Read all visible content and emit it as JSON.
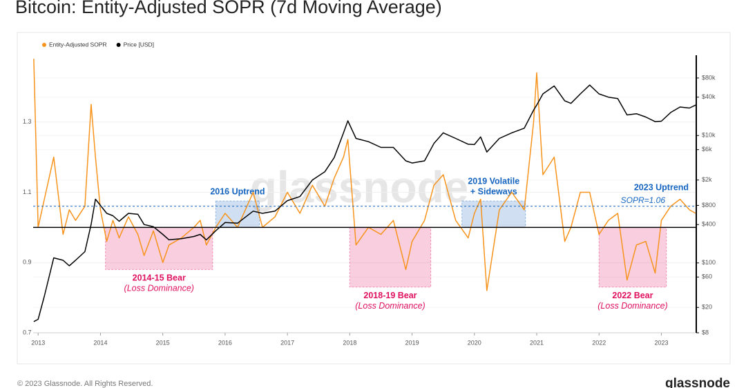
{
  "chart_data": {
    "type": "line",
    "title": "Bitcoin: Entity-Adjusted SOPR (7d Moving Average)",
    "watermark": "glassnode",
    "footer": "© 2023 Glassnode. All Rights Reserved.",
    "logo": "glassnode",
    "x": [
      2012.93,
      2013.0,
      2013.1,
      2013.25,
      2013.4,
      2013.5,
      2013.6,
      2013.75,
      2013.85,
      2013.92,
      2014.0,
      2014.1,
      2014.2,
      2014.3,
      2014.45,
      2014.6,
      2014.7,
      2014.85,
      2015.0,
      2015.1,
      2015.3,
      2015.5,
      2015.6,
      2015.7,
      2015.85,
      2016.0,
      2016.2,
      2016.45,
      2016.6,
      2016.8,
      2017.0,
      2017.2,
      2017.4,
      2017.6,
      2017.75,
      2017.9,
      2017.97,
      2018.1,
      2018.3,
      2018.5,
      2018.7,
      2018.9,
      2019.0,
      2019.2,
      2019.35,
      2019.5,
      2019.7,
      2019.9,
      2020.0,
      2020.1,
      2020.2,
      2020.4,
      2020.6,
      2020.8,
      2020.95,
      2021.0,
      2021.1,
      2021.28,
      2021.45,
      2021.55,
      2021.7,
      2021.85,
      2022.0,
      2022.15,
      2022.3,
      2022.45,
      2022.6,
      2022.75,
      2022.9,
      2023.0,
      2023.15,
      2023.3,
      2023.45,
      2023.55
    ],
    "series": [
      {
        "name": "Entity-Adjusted SOPR",
        "color": "#f7931a",
        "axis": "y",
        "values": [
          1.48,
          1.0,
          1.08,
          1.2,
          0.98,
          1.05,
          1.02,
          1.06,
          1.35,
          1.2,
          1.05,
          0.96,
          1.02,
          0.97,
          1.03,
          0.98,
          0.92,
          0.99,
          0.9,
          0.95,
          0.97,
          1.0,
          1.02,
          0.95,
          1.0,
          1.04,
          1.0,
          1.1,
          1.0,
          1.03,
          1.1,
          1.04,
          1.12,
          1.06,
          1.14,
          1.2,
          1.25,
          0.95,
          1.0,
          0.98,
          1.02,
          0.88,
          0.96,
          1.02,
          1.12,
          1.15,
          1.02,
          0.97,
          1.04,
          1.08,
          0.82,
          1.05,
          1.1,
          1.05,
          1.3,
          1.44,
          1.15,
          1.2,
          0.96,
          1.0,
          1.1,
          1.1,
          0.98,
          1.02,
          1.04,
          0.85,
          0.95,
          0.96,
          0.87,
          1.02,
          1.06,
          1.08,
          1.05,
          1.04
        ]
      },
      {
        "name": "Price [USD]",
        "color": "#000000",
        "axis": "y2",
        "values": [
          12,
          13,
          30,
          120,
          110,
          90,
          110,
          150,
          400,
          1000,
          800,
          600,
          550,
          450,
          600,
          580,
          400,
          370,
          280,
          230,
          240,
          260,
          280,
          230,
          320,
          430,
          420,
          650,
          600,
          650,
          950,
          1100,
          2000,
          2700,
          4500,
          11000,
          17000,
          9000,
          8000,
          6500,
          6500,
          4000,
          3700,
          4000,
          7500,
          11000,
          9000,
          7300,
          7200,
          9500,
          5500,
          9000,
          11000,
          13000,
          25000,
          30000,
          45000,
          60000,
          35000,
          32000,
          45000,
          62000,
          45000,
          40000,
          38000,
          21000,
          22000,
          19500,
          16500,
          16800,
          23000,
          28000,
          27000,
          30000
        ]
      }
    ],
    "xlim": [
      2012.92,
      2023.56
    ],
    "xticks": [
      2013,
      2014,
      2015,
      2016,
      2017,
      2018,
      2019,
      2020,
      2021,
      2022,
      2023
    ],
    "ylim": [
      0.7,
      1.49
    ],
    "yticks": [
      0.7,
      0.9,
      1.1,
      1.3
    ],
    "y2lim": [
      8,
      182000
    ],
    "y2log": true,
    "y2ticks": [
      {
        "value": 8,
        "label": "$8"
      },
      {
        "value": 20,
        "label": "$20"
      },
      {
        "value": 60,
        "label": "$60"
      },
      {
        "value": 100,
        "label": "$100"
      },
      {
        "value": 400,
        "label": "$400"
      },
      {
        "value": 800,
        "label": "$800"
      },
      {
        "value": 2000,
        "label": "$2k"
      },
      {
        "value": 6000,
        "label": "$6k"
      },
      {
        "value": 10000,
        "label": "$10k"
      },
      {
        "value": 40000,
        "label": "$40k"
      },
      {
        "value": 80000,
        "label": "$80k"
      }
    ],
    "grid": true,
    "hlines": [
      {
        "value": 1,
        "color": "#000000"
      },
      {
        "value": 1.06,
        "color": "#1565c0",
        "label": "SOPR=1.06"
      }
    ],
    "regions": [
      {
        "x": [
          2014.08,
          2015.8
        ],
        "y": [
          0.88,
          1.0
        ],
        "color": "#e0115f",
        "label": "2014-15 Bear",
        "sublabel": "(Loss Dominance)"
      },
      {
        "x": [
          2018.0,
          2019.3
        ],
        "y": [
          0.83,
          1.0
        ],
        "color": "#e0115f",
        "label": "2018-19 Bear",
        "sublabel": "(Loss Dominance)"
      },
      {
        "x": [
          2022.0,
          2023.08
        ],
        "y": [
          0.83,
          1.0
        ],
        "color": "#e0115f",
        "label": "2022 Bear",
        "sublabel": "(Loss Dominance)"
      },
      {
        "x": [
          2015.85,
          2016.55
        ],
        "y": [
          1.0,
          1.075
        ],
        "color": "#1565c0",
        "label": "2016 Uptrend"
      },
      {
        "x": [
          2019.8,
          2020.82
        ],
        "y": [
          1.0,
          1.075
        ],
        "color": "#1565c0",
        "label": "2019 Volatile",
        "sublabel": "+ Sideways"
      }
    ],
    "annotations": [
      {
        "text": "2023 Uptrend",
        "x": 2023.0,
        "y": 1.112,
        "color": "#1565c0"
      }
    ]
  }
}
